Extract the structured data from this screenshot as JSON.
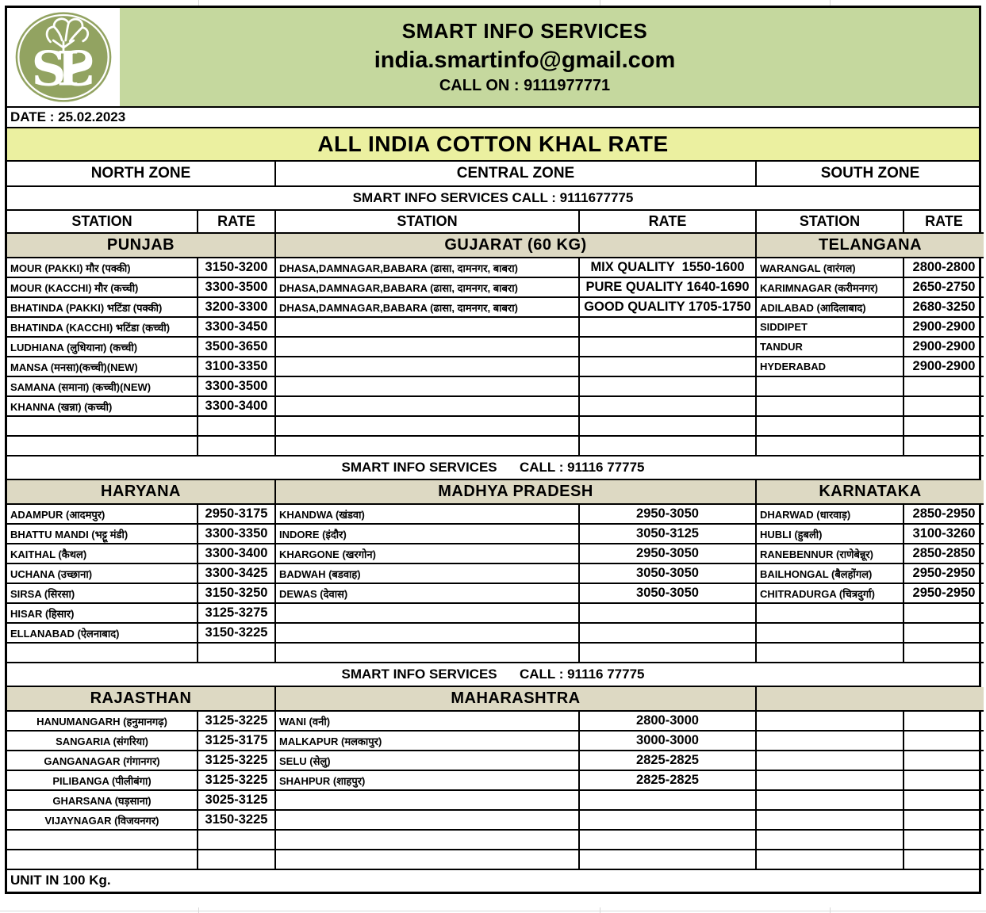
{
  "header": {
    "logo_text": "SIS",
    "title": "SMART INFO SERVICES",
    "email": "india.smartinfo@gmail.com",
    "call_on": "CALL ON : 9111977771"
  },
  "date_line": "DATE : 25.02.2023",
  "banner_title": "ALL INDIA COTTON KHAL RATE",
  "zone_headers": [
    "NORTH ZONE",
    "CENTRAL ZONE",
    "SOUTH ZONE"
  ],
  "column_headers": [
    "STATION",
    "RATE",
    "STATION",
    "RATE",
    "STATION",
    "RATE"
  ],
  "footer": "UNIT IN 100 Kg.",
  "colors": {
    "header_green": "#c5d89e",
    "banner_yellow": "#ebf0a0",
    "section_beige": "#ddd9c3",
    "logo_green": "#92a361",
    "border_black": "#000000"
  },
  "bands": [
    {
      "call_line": "SMART INFO SERVICES CALL : 9111677775",
      "row_count": 10,
      "sections": [
        {
          "name": "PUNJAB",
          "rows": [
            [
              "MOUR (PAKKI) मौर (पक्की)",
              "3150-3200"
            ],
            [
              "MOUR (KACCHI) मौर (कच्ची)",
              "3300-3500"
            ],
            [
              "BHATINDA (PAKKI) भटिंडा (पक्की)",
              "3200-3300"
            ],
            [
              "BHATINDA (KACCHI) भटिंडा (कच्ची)",
              "3300-3450"
            ],
            [
              "LUDHIANA (लुधियाना) (कच्ची)",
              "3500-3650"
            ],
            [
              "MANSA (मनसा)(कच्ची)(NEW)",
              "3100-3350"
            ],
            [
              "SAMANA (समाना) (कच्ची)(NEW)",
              "3300-3500"
            ],
            [
              "KHANNA (खन्ना) (कच्ची)",
              "3300-3400"
            ]
          ]
        },
        {
          "name": "GUJARAT (60 KG)",
          "rows": [
            [
              "DHASA,DAMNAGAR,BABARA (ढासा, दामनगर, बाबरा)",
              "MIX QUALITY  1550-1600"
            ],
            [
              "DHASA,DAMNAGAR,BABARA (ढासा, दामनगर, बाबरा)",
              "PURE QUALITY 1640-1690"
            ],
            [
              "DHASA,DAMNAGAR,BABARA (ढासा, दामनगर, बाबरा)",
              "GOOD QUALITY 1705-1750"
            ]
          ]
        },
        {
          "name": "TELANGANA",
          "rows": [
            [
              "WARANGAL (वारंगल)",
              "2800-2800"
            ],
            [
              "KARIMNAGAR (करीमनगर)",
              "2650-2750"
            ],
            [
              "ADILABAD (आदिलाबाद)",
              "2680-3250"
            ],
            [
              "SIDDIPET",
              "2900-2900"
            ],
            [
              "TANDUR",
              "2900-2900"
            ],
            [
              "HYDERABAD",
              "2900-2900"
            ]
          ]
        }
      ]
    },
    {
      "call_line": "SMART INFO SERVICES      CALL : 91116 77775",
      "row_count": 8,
      "sections": [
        {
          "name": "HARYANA",
          "rows": [
            [
              "ADAMPUR (आदमपुर)",
              "2950-3175"
            ],
            [
              "BHATTU MANDI (भट्टू मंडी)",
              "3300-3350"
            ],
            [
              "KAITHAL (कैथल)",
              "3300-3400"
            ],
            [
              "UCHANA (उच्छाना)",
              "3300-3425"
            ],
            [
              "SIRSA (सिरसा)",
              "3150-3250"
            ],
            [
              "HISAR (हिसार)",
              "3125-3275"
            ],
            [
              "ELLANABAD (ऐलनाबाद)",
              "3150-3225"
            ]
          ]
        },
        {
          "name": "MADHYA PRADESH",
          "rows": [
            [
              "KHANDWA (खंडवा)",
              "2950-3050"
            ],
            [
              "INDORE (इंदौर)",
              "3050-3125"
            ],
            [
              "KHARGONE (खरगोन)",
              "2950-3050"
            ],
            [
              "BADWAH (बडवाह)",
              "3050-3050"
            ],
            [
              "DEWAS (देवास)",
              "3050-3050"
            ]
          ]
        },
        {
          "name": "KARNATAKA",
          "rows": [
            [
              "DHARWAD (धारवाड़)",
              "2850-2950"
            ],
            [
              "HUBLI (हुबली)",
              "3100-3260"
            ],
            [
              "RANEBENNUR (राणेबेन्नूर)",
              "2850-2850"
            ],
            [
              "BAILHONGAL (बैलहोंगल)",
              "2950-2950"
            ],
            [
              "CHITRADURGA (चित्रदुर्गा)",
              "2950-2950"
            ]
          ]
        }
      ]
    },
    {
      "call_line": "SMART INFO SERVICES      CALL : 91116 77775",
      "row_count": 8,
      "sections": [
        {
          "name": "RAJASTHAN",
          "center": true,
          "rows": [
            [
              "HANUMANGARH (हनुमानगढ़)",
              "3125-3225"
            ],
            [
              "SANGARIA (संगरिया)",
              "3125-3175"
            ],
            [
              "GANGANAGAR (गंगानगर)",
              "3125-3225"
            ],
            [
              "PILIBANGA (पीलीबंगा)",
              "3125-3225"
            ],
            [
              "GHARSANA (घड़साना)",
              "3025-3125"
            ],
            [
              "VIJAYNAGAR (विजयनगर)",
              "3150-3225"
            ]
          ]
        },
        {
          "name": "MAHARASHTRA",
          "rows": [
            [
              "WANI (वनी)",
              "2800-3000"
            ],
            [
              "MALKAPUR (मलकापुर)",
              "3000-3000"
            ],
            [
              "SELU (सेलु)",
              "2825-2825"
            ],
            [
              "SHAHPUR (शाहपुर)",
              "2825-2825"
            ]
          ]
        },
        {
          "name": "",
          "rows": []
        }
      ]
    }
  ]
}
